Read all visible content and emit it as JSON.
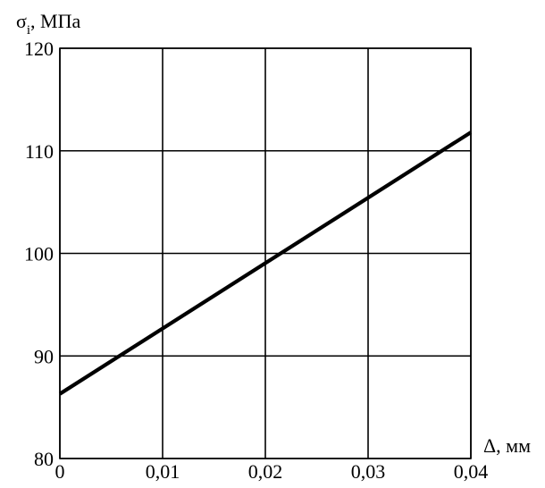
{
  "chart_data": {
    "type": "line",
    "title": "",
    "ylabel": {
      "main": "σ",
      "subscript": "i",
      "unit": ", МПа"
    },
    "xlabel": "Δ, мм",
    "xlim": [
      0,
      0.04
    ],
    "ylim": [
      80,
      120
    ],
    "x_ticks": [
      {
        "value": 0,
        "label": "0"
      },
      {
        "value": 0.01,
        "label": "0,01"
      },
      {
        "value": 0.02,
        "label": "0,02"
      },
      {
        "value": 0.03,
        "label": "0,03"
      },
      {
        "value": 0.04,
        "label": "0,04"
      }
    ],
    "y_ticks": [
      {
        "value": 80,
        "label": "80"
      },
      {
        "value": 90,
        "label": "90"
      },
      {
        "value": 100,
        "label": "100"
      },
      {
        "value": 110,
        "label": "110"
      },
      {
        "value": 120,
        "label": "120"
      }
    ],
    "grid": true,
    "series": [
      {
        "x": [
          0,
          0.04
        ],
        "y": [
          86.3,
          111.8
        ]
      }
    ]
  }
}
